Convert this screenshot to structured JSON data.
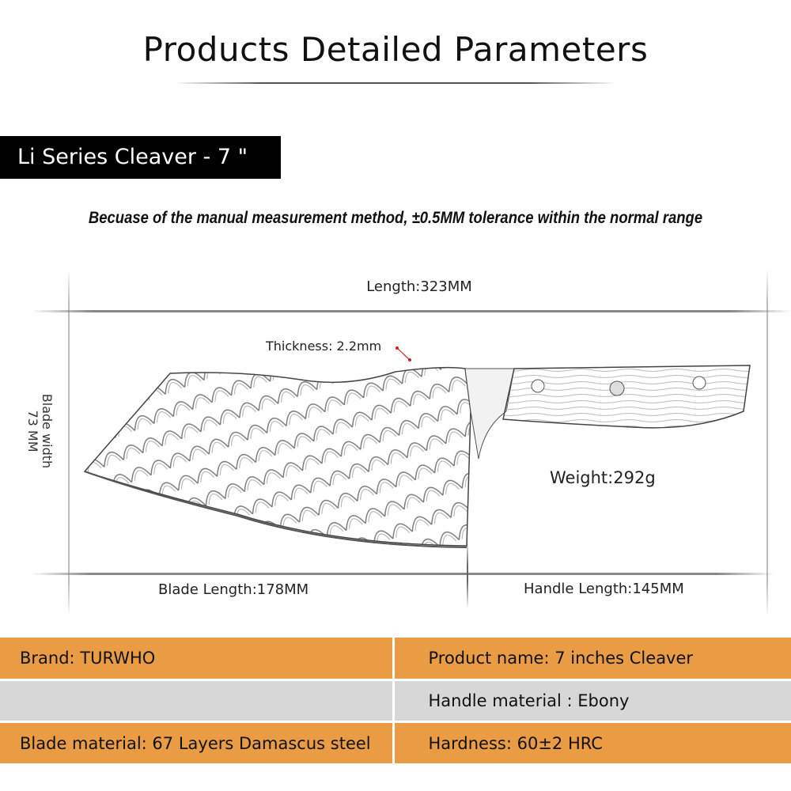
{
  "header": {
    "title": "Products Detailed Parameters",
    "series_label": "Li Series Cleaver - 7 \"",
    "note": "Becuase of the manual measurement method, ±0.5MM tolerance within the normal range"
  },
  "dimensions": {
    "length": "Length:323MM",
    "thickness": "Thickness: 2.2mm",
    "blade_width_label": "Blade width",
    "blade_width_value": "73 MM",
    "weight": "Weight:292g",
    "blade_length": "Blade Length:178MM",
    "handle_length": "Handle Length:145MM"
  },
  "specs": {
    "rows": [
      {
        "left": "Brand: TURWHO",
        "right": "Product name: 7 inches Cleaver"
      },
      {
        "left": "",
        "right": "Handle material :  Ebony"
      },
      {
        "left": "Blade material: 67 Layers Damascus steel",
        "right": "Hardness: 60±2 HRC"
      }
    ]
  },
  "colors": {
    "orange": "#e99c43",
    "gray": "#d7d7d7",
    "accent_dot": "#d22020"
  }
}
